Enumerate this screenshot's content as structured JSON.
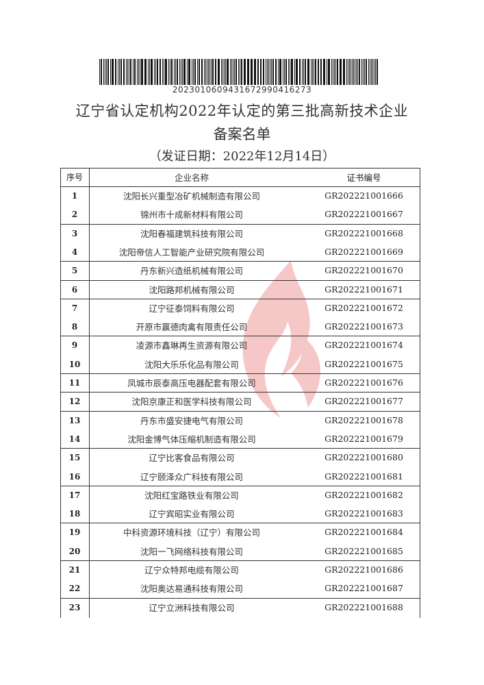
{
  "barcode_number": "2023010609431672990416273",
  "header": {
    "title_line1": "辽宁省认定机构2022年认定的第三批高新技术企业",
    "title_line2": "备案名单",
    "issue_date": "（发证日期：2022年12月14日）"
  },
  "table": {
    "columns": [
      "序号",
      "企业名称",
      "证书编号"
    ],
    "rows": [
      {
        "no": "1",
        "name": "沈阳长兴重型冶矿机械制造有限公司",
        "cert": "GR202221001666"
      },
      {
        "no": "2",
        "name": "锦州市十成新材料有限公司",
        "cert": "GR202221001667"
      },
      {
        "no": "3",
        "name": "沈阳春福建筑科技有限公司",
        "cert": "GR202221001668"
      },
      {
        "no": "4",
        "name": "沈阳帝信人工智能产业研究院有限公司",
        "cert": "GR202221001669"
      },
      {
        "no": "5",
        "name": "丹东新兴造纸机械有限公司",
        "cert": "GR202221001670"
      },
      {
        "no": "6",
        "name": "沈阳路邦机械有限公司",
        "cert": "GR202221001671"
      },
      {
        "no": "7",
        "name": "辽宁征泰饲料有限公司",
        "cert": "GR202221001672"
      },
      {
        "no": "8",
        "name": "开原市赢德肉禽有限责任公司",
        "cert": "GR202221001673"
      },
      {
        "no": "9",
        "name": "凌源市鑫琳再生资源有限公司",
        "cert": "GR202221001674"
      },
      {
        "no": "10",
        "name": "沈阳大乐乐化品有限公司",
        "cert": "GR202221001675"
      },
      {
        "no": "11",
        "name": "凤城市辰泰高压电器配套有限公司",
        "cert": "GR202221001676"
      },
      {
        "no": "12",
        "name": "沈阳京康正和医学科技有限公司",
        "cert": "GR202221001677"
      },
      {
        "no": "13",
        "name": "丹东市盛安捷电气有限公司",
        "cert": "GR202221001678"
      },
      {
        "no": "14",
        "name": "沈阳金博气体压缩机制造有限公司",
        "cert": "GR202221001679"
      },
      {
        "no": "15",
        "name": "辽宁比客食品有限公司",
        "cert": "GR202221001680"
      },
      {
        "no": "16",
        "name": "辽宁颐泽众广科技有限公司",
        "cert": "GR202221001681"
      },
      {
        "no": "17",
        "name": "沈阳红宝路铁业有限公司",
        "cert": "GR202221001682"
      },
      {
        "no": "18",
        "name": "辽宁宾昭实业有限公司",
        "cert": "GR202221001683"
      },
      {
        "no": "19",
        "name": "中科资源环境科技（辽宁）有限公司",
        "cert": "GR202221001684"
      },
      {
        "no": "20",
        "name": "沈阳一飞网络科技有限公司",
        "cert": "GR202221001685"
      },
      {
        "no": "21",
        "name": "辽宁众特邦电缆有限公司",
        "cert": "GR202221001686"
      },
      {
        "no": "22",
        "name": "沈阳奥达易通科技有限公司",
        "cert": "GR202221001687"
      },
      {
        "no": "23",
        "name": "辽宁立洲科技有限公司",
        "cert": "GR202221001688"
      }
    ]
  },
  "watermark_color": "#e03a3a"
}
